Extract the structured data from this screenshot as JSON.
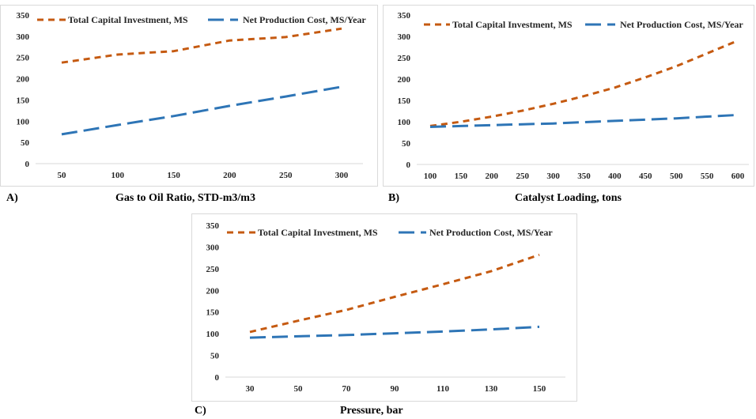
{
  "colors": {
    "capital": "#c55a11",
    "production": "#2e75b6",
    "axis": "#d9d9d9"
  },
  "chart_data": [
    {
      "type": "line",
      "panel_label": "A)",
      "xlabel": "Gas to Oil Ratio, STD-m3/m3",
      "ylabel": "",
      "x": [
        50,
        100,
        150,
        200,
        250,
        300
      ],
      "xticks": [
        "50",
        "100",
        "150",
        "200",
        "250",
        "300"
      ],
      "yticks": [
        "0",
        "50",
        "100",
        "150",
        "200",
        "250",
        "300",
        "350"
      ],
      "ylim": [
        0,
        350
      ],
      "grid": false,
      "legend": "top",
      "series": [
        {
          "name": "Total Capital Investment, MS",
          "values": [
            238,
            257,
            265,
            290,
            298,
            318
          ]
        },
        {
          "name": "Net Production Cost, MS/Year",
          "values": [
            69,
            91,
            112,
            136,
            158,
            181
          ]
        }
      ]
    },
    {
      "type": "line",
      "panel_label": "B)",
      "xlabel": "Catalyst Loading, tons",
      "ylabel": "",
      "x": [
        100,
        150,
        200,
        250,
        300,
        350,
        400,
        450,
        500,
        550,
        600
      ],
      "xticks": [
        "100",
        "150",
        "200",
        "250",
        "300",
        "350",
        "400",
        "450",
        "500",
        "550",
        "600"
      ],
      "yticks": [
        "0",
        "50",
        "100",
        "150",
        "200",
        "250",
        "300",
        "350"
      ],
      "ylim": [
        0,
        350
      ],
      "grid": false,
      "legend": "top",
      "series": [
        {
          "name": "Total Capital Investment, MS",
          "values": [
            90,
            100,
            112,
            126,
            142,
            160,
            180,
            204,
            230,
            260,
            290
          ]
        },
        {
          "name": "Net Production Cost, MS/Year",
          "values": [
            88,
            90,
            92,
            94,
            96,
            99,
            102,
            105,
            108,
            112,
            116
          ]
        }
      ]
    },
    {
      "type": "line",
      "panel_label": "C)",
      "xlabel": "Pressure, bar",
      "ylabel": "",
      "x": [
        30,
        50,
        70,
        90,
        110,
        130,
        150
      ],
      "xticks": [
        "30",
        "50",
        "70",
        "90",
        "110",
        "130",
        "150"
      ],
      "yticks": [
        "0",
        "50",
        "100",
        "150",
        "200",
        "250",
        "300",
        "350"
      ],
      "ylim": [
        0,
        350
      ],
      "grid": false,
      "legend": "top",
      "series": [
        {
          "name": "Total Capital Investment, MS",
          "values": [
            104,
            130,
            155,
            185,
            214,
            244,
            282
          ]
        },
        {
          "name": "Net Production Cost, MS/Year",
          "values": [
            91,
            94,
            97,
            101,
            105,
            110,
            116
          ]
        }
      ]
    }
  ]
}
